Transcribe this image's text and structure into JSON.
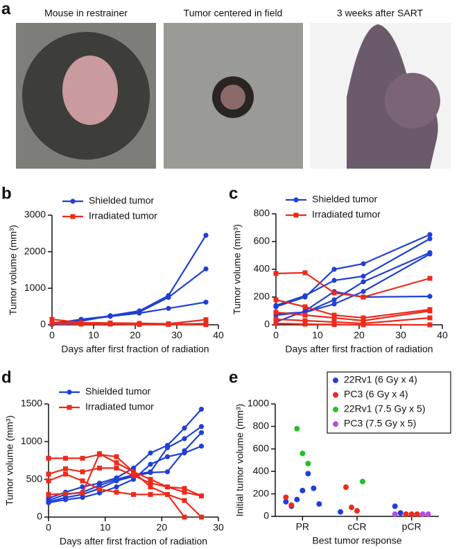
{
  "figure_labels": [
    "a",
    "b",
    "c",
    "d",
    "e"
  ],
  "photo_titles": [
    "Mouse in restrainer",
    "Tumor centered in field",
    "3 weeks after SART"
  ],
  "chart_data": [
    {
      "type": "line",
      "x_label": "Days after first fraction of radiation",
      "y_label": "Tumor volume (mm³)",
      "x": [
        0,
        7,
        14,
        21,
        28,
        37
      ],
      "xlim": [
        0,
        40
      ],
      "xticks": [
        0,
        10,
        20,
        30,
        40
      ],
      "ylim": [
        0,
        3000
      ],
      "yticks": [
        0,
        1000,
        2000,
        3000
      ],
      "series": [
        {
          "name": "Shielded tumor",
          "color": "#1f3fd6",
          "marker": "circle",
          "lines": [
            [
              20,
              100,
              250,
              380,
              800,
              2450
            ],
            [
              30,
              150,
              240,
              350,
              750,
              1530
            ],
            [
              50,
              130,
              230,
              320,
              450,
              620
            ],
            [
              10,
              20,
              20,
              30,
              20,
              30
            ]
          ]
        },
        {
          "name": "Irradiated tumor",
          "color": "#ee2a1b",
          "marker": "square",
          "lines": [
            [
              150,
              60,
              50,
              40,
              30,
              140
            ],
            [
              60,
              40,
              40,
              30,
              20,
              10
            ],
            [
              30,
              20,
              20,
              10,
              10,
              5
            ]
          ]
        }
      ]
    },
    {
      "type": "line",
      "x_label": "Days after first fraction of radiation",
      "y_label": "Tumor volume (mm³)",
      "x": [
        0,
        7,
        14,
        21,
        37
      ],
      "xlim": [
        0,
        40
      ],
      "xticks": [
        0,
        10,
        20,
        30,
        40
      ],
      "ylim": [
        0,
        800
      ],
      "yticks": [
        0,
        200,
        400,
        600,
        800
      ],
      "series": [
        {
          "name": "Shielded tumor",
          "color": "#1f3fd6",
          "marker": "circle",
          "lines": [
            [
              130,
              200,
              400,
              440,
              650
            ],
            [
              140,
              210,
              320,
              350,
              620
            ],
            [
              80,
              90,
              180,
              310,
              520
            ],
            [
              70,
              90,
              150,
              240,
              510
            ],
            [
              20,
              100,
              240,
              200,
              205
            ]
          ]
        },
        {
          "name": "Irradiated tumor",
          "color": "#ee2a1b",
          "marker": "square",
          "lines": [
            [
              370,
              375,
              230,
              200,
              335
            ],
            [
              180,
              130,
              70,
              50,
              110
            ],
            [
              90,
              70,
              50,
              30,
              100
            ],
            [
              40,
              30,
              20,
              10,
              50
            ],
            [
              10,
              5,
              2,
              0,
              0
            ]
          ]
        }
      ]
    },
    {
      "type": "line",
      "x_label": "Days after first fraction of radiation",
      "y_label": "Tumor volume (mm³)",
      "x": [
        0,
        3,
        6,
        9,
        12,
        15,
        18,
        21,
        24,
        27
      ],
      "xlim": [
        0,
        30
      ],
      "xticks": [
        0,
        10,
        20,
        30
      ],
      "ylim": [
        0,
        1500
      ],
      "yticks": [
        0,
        500,
        1000,
        1500
      ],
      "series": [
        {
          "name": "Shielded tumor",
          "color": "#1f3fd6",
          "marker": "circle",
          "lines": [
            [
              250,
              330,
              400,
              450,
              520,
              650,
              850,
              950,
              1180,
              1430
            ],
            [
              220,
              300,
              330,
              420,
              500,
              560,
              600,
              920,
              1040,
              1200
            ],
            [
              200,
              260,
              300,
              380,
              480,
              540,
              590,
              600,
              880,
              1120
            ],
            [
              190,
              230,
              260,
              320,
              400,
              500,
              700,
              800,
              850,
              940
            ]
          ]
        },
        {
          "name": "Irradiated tumor",
          "color": "#ee2a1b",
          "marker": "square",
          "lines": [
            [
              780,
              780,
              780,
              830,
              800,
              600,
              500,
              400,
              330,
              280
            ],
            [
              570,
              640,
              600,
              650,
              650,
              550,
              450,
              400,
              380,
              280
            ],
            [
              480,
              570,
              480,
              370,
              330,
              300,
              300,
              300,
              220,
              0
            ],
            [
              300,
              310,
              320,
              840,
              720,
              600,
              400,
              300,
              0,
              null
            ]
          ]
        }
      ]
    },
    {
      "type": "scatter",
      "x_label": "Best tumor response",
      "y_label": "Initial tumor volume (mm³)",
      "categories": [
        "PR",
        "cCR",
        "pCR"
      ],
      "ylim": [
        0,
        1000
      ],
      "yticks": [
        0,
        200,
        400,
        600,
        800,
        1000
      ],
      "series": [
        {
          "name": "22Rv1 (6 Gy x 4)",
          "color": "#1f3fd6",
          "category": [
            0,
            0,
            0,
            0,
            0,
            0,
            0,
            1,
            2,
            2
          ],
          "values": [
            130,
            90,
            150,
            230,
            380,
            250,
            110,
            40,
            90,
            30
          ]
        },
        {
          "name": "PC3 (6 Gy x 4)",
          "color": "#ee2a1b",
          "category": [
            0,
            0,
            1,
            1,
            1,
            2,
            2,
            2
          ],
          "values": [
            170,
            100,
            260,
            80,
            50,
            20,
            20,
            20
          ]
        },
        {
          "name": "22Rv1 (7.5 Gy x 5)",
          "color": "#22c02a",
          "category": [
            0,
            0,
            0,
            1
          ],
          "values": [
            780,
            560,
            470,
            310
          ]
        },
        {
          "name": "PC3 (7.5 Gy x 5)",
          "color": "#b24fe0",
          "category": [
            2,
            2,
            2
          ],
          "values": [
            20,
            20,
            20
          ]
        }
      ]
    }
  ]
}
